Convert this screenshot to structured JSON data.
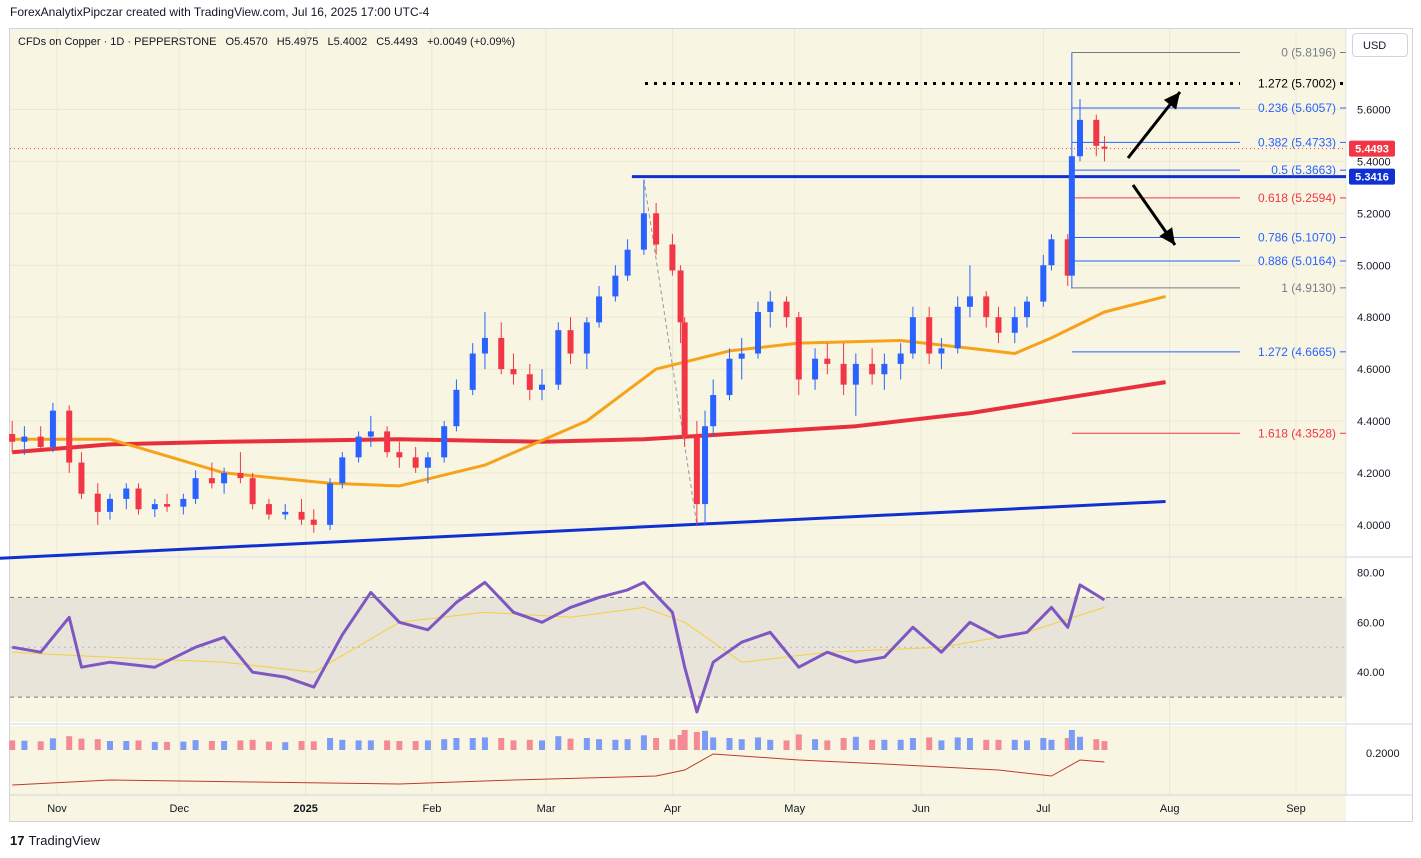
{
  "header": {
    "attribution": "ForexAnalytixPipczar created with TradingView.com, Jul 16, 2025 17:00 UTC-4"
  },
  "symbol_bar": {
    "name": "CFDs on Copper · 1D · PEPPERSTONE",
    "open": "O5.4570",
    "high": "H5.4975",
    "low": "L5.4002",
    "close": "C5.4493",
    "change": "+0.0049 (+0.09%)"
  },
  "currency_button": "USD",
  "footer": {
    "logo_mark": "17",
    "logo_text": "TradingView"
  },
  "colors": {
    "background": "#f8f6e3",
    "up": "#2962ff",
    "down": "#f23645",
    "ma50": "#f7a21b",
    "ma200": "#e8303c",
    "trendline": "#1130d1",
    "rsi": "#7e57c2",
    "rsi_signal": "#f4d03f"
  },
  "chart_data": [
    {
      "type": "candlestick",
      "title": "CFDs on Copper · 1D · PEPPERSTONE",
      "x_ticks": [
        "Nov",
        "Dec",
        "2025",
        "Feb",
        "Mar",
        "Apr",
        "May",
        "Jun",
        "Jul",
        "Aug",
        "Sep"
      ],
      "y_ticks": [
        "4.0000",
        "4.2000",
        "4.4000",
        "4.6000",
        "4.8000",
        "5.0000",
        "5.2000",
        "5.4000",
        "5.6000"
      ],
      "ylim": [
        3.88,
        5.86
      ],
      "last_price": "5.4493",
      "level_label": "5.3416",
      "fibonacci": [
        {
          "label": "0 (5.8196)",
          "value": 5.8196,
          "color": "#787b86"
        },
        {
          "label": "0.236 (5.6057)",
          "value": 5.6057,
          "color": "#2962ff"
        },
        {
          "label": "0.382 (5.4733)",
          "value": 5.4733,
          "color": "#2962ff"
        },
        {
          "label": "0.5 (5.3663)",
          "value": 5.3663,
          "color": "#2962ff"
        },
        {
          "label": "0.618 (5.2594)",
          "value": 5.2594,
          "color": "#f23645"
        },
        {
          "label": "0.786 (5.1070)",
          "value": 5.107,
          "color": "#2962ff"
        },
        {
          "label": "0.886 (5.0164)",
          "value": 5.0164,
          "color": "#2962ff"
        },
        {
          "label": "1 (4.9130)",
          "value": 4.913,
          "color": "#787b86"
        },
        {
          "label": "1.272 (4.6665)",
          "value": 4.6665,
          "color": "#2962ff"
        },
        {
          "label": "1.618 (4.3528)",
          "value": 4.3528,
          "color": "#f23645"
        }
      ],
      "target": {
        "label": "1.272 (5.7002)",
        "value": 5.7002
      },
      "resistance": 5.3416,
      "trendline": {
        "start": [
          "Oct 21",
          3.87
        ],
        "end": [
          "Jul 31",
          4.09
        ]
      },
      "candles": [
        {
          "date": "Oct 21",
          "o": 4.35,
          "h": 4.4,
          "l": 4.28,
          "c": 4.32
        },
        {
          "date": "Oct 24",
          "o": 4.32,
          "h": 4.38,
          "l": 4.27,
          "c": 4.34
        },
        {
          "date": "Oct 28",
          "o": 4.34,
          "h": 4.38,
          "l": 4.29,
          "c": 4.3
        },
        {
          "date": "Oct 31",
          "o": 4.3,
          "h": 4.47,
          "l": 4.28,
          "c": 4.44
        },
        {
          "date": "Nov 04",
          "o": 4.44,
          "h": 4.46,
          "l": 4.2,
          "c": 4.24
        },
        {
          "date": "Nov 07",
          "o": 4.24,
          "h": 4.28,
          "l": 4.1,
          "c": 4.12
        },
        {
          "date": "Nov 11",
          "o": 4.12,
          "h": 4.16,
          "l": 4.0,
          "c": 4.05
        },
        {
          "date": "Nov 14",
          "o": 4.05,
          "h": 4.12,
          "l": 4.02,
          "c": 4.1
        },
        {
          "date": "Nov 18",
          "o": 4.1,
          "h": 4.16,
          "l": 4.06,
          "c": 4.14
        },
        {
          "date": "Nov 21",
          "o": 4.14,
          "h": 4.16,
          "l": 4.04,
          "c": 4.06
        },
        {
          "date": "Nov 25",
          "o": 4.06,
          "h": 4.1,
          "l": 4.03,
          "c": 4.08
        },
        {
          "date": "Nov 28",
          "o": 4.08,
          "h": 4.12,
          "l": 4.05,
          "c": 4.07
        },
        {
          "date": "Dec 02",
          "o": 4.07,
          "h": 4.12,
          "l": 4.04,
          "c": 4.1
        },
        {
          "date": "Dec 05",
          "o": 4.1,
          "h": 4.21,
          "l": 4.08,
          "c": 4.18
        },
        {
          "date": "Dec 09",
          "o": 4.18,
          "h": 4.24,
          "l": 4.14,
          "c": 4.16
        },
        {
          "date": "Dec 12",
          "o": 4.16,
          "h": 4.22,
          "l": 4.12,
          "c": 4.2
        },
        {
          "date": "Dec 16",
          "o": 4.2,
          "h": 4.28,
          "l": 4.16,
          "c": 4.18
        },
        {
          "date": "Dec 19",
          "o": 4.18,
          "h": 4.2,
          "l": 4.06,
          "c": 4.08
        },
        {
          "date": "Dec 23",
          "o": 4.08,
          "h": 4.1,
          "l": 4.02,
          "c": 4.04
        },
        {
          "date": "Dec 27",
          "o": 4.04,
          "h": 4.08,
          "l": 4.02,
          "c": 4.05
        },
        {
          "date": "Dec 31",
          "o": 4.05,
          "h": 4.1,
          "l": 4.0,
          "c": 4.02
        },
        {
          "date": "Jan 03",
          "o": 4.02,
          "h": 4.06,
          "l": 3.97,
          "c": 4.0
        },
        {
          "date": "Jan 07",
          "o": 4.0,
          "h": 4.18,
          "l": 3.98,
          "c": 4.16
        },
        {
          "date": "Jan 10",
          "o": 4.16,
          "h": 4.28,
          "l": 4.14,
          "c": 4.26
        },
        {
          "date": "Jan 14",
          "o": 4.26,
          "h": 4.36,
          "l": 4.24,
          "c": 4.34
        },
        {
          "date": "Jan 17",
          "o": 4.34,
          "h": 4.42,
          "l": 4.3,
          "c": 4.36
        },
        {
          "date": "Jan 21",
          "o": 4.36,
          "h": 4.38,
          "l": 4.26,
          "c": 4.28
        },
        {
          "date": "Jan 24",
          "o": 4.28,
          "h": 4.32,
          "l": 4.22,
          "c": 4.26
        },
        {
          "date": "Jan 28",
          "o": 4.26,
          "h": 4.3,
          "l": 4.2,
          "c": 4.22
        },
        {
          "date": "Jan 31",
          "o": 4.22,
          "h": 4.28,
          "l": 4.16,
          "c": 4.26
        },
        {
          "date": "Feb 04",
          "o": 4.26,
          "h": 4.4,
          "l": 4.24,
          "c": 4.38
        },
        {
          "date": "Feb 07",
          "o": 4.38,
          "h": 4.56,
          "l": 4.36,
          "c": 4.52
        },
        {
          "date": "Feb 11",
          "o": 4.52,
          "h": 4.7,
          "l": 4.5,
          "c": 4.66
        },
        {
          "date": "Feb 14",
          "o": 4.66,
          "h": 4.82,
          "l": 4.6,
          "c": 4.72
        },
        {
          "date": "Feb 18",
          "o": 4.72,
          "h": 4.78,
          "l": 4.58,
          "c": 4.6
        },
        {
          "date": "Feb 21",
          "o": 4.6,
          "h": 4.66,
          "l": 4.54,
          "c": 4.58
        },
        {
          "date": "Feb 25",
          "o": 4.58,
          "h": 4.62,
          "l": 4.48,
          "c": 4.52
        },
        {
          "date": "Feb 28",
          "o": 4.52,
          "h": 4.6,
          "l": 4.48,
          "c": 4.54
        },
        {
          "date": "Mar 04",
          "o": 4.54,
          "h": 4.78,
          "l": 4.52,
          "c": 4.75
        },
        {
          "date": "Mar 07",
          "o": 4.75,
          "h": 4.8,
          "l": 4.62,
          "c": 4.66
        },
        {
          "date": "Mar 11",
          "o": 4.66,
          "h": 4.8,
          "l": 4.6,
          "c": 4.78
        },
        {
          "date": "Mar 14",
          "o": 4.78,
          "h": 4.92,
          "l": 4.76,
          "c": 4.88
        },
        {
          "date": "Mar 18",
          "o": 4.88,
          "h": 5.0,
          "l": 4.86,
          "c": 4.96
        },
        {
          "date": "Mar 21",
          "o": 4.96,
          "h": 5.1,
          "l": 4.94,
          "c": 5.06
        },
        {
          "date": "Mar 25",
          "o": 5.06,
          "h": 5.33,
          "l": 5.04,
          "c": 5.2
        },
        {
          "date": "Mar 28",
          "o": 5.2,
          "h": 5.24,
          "l": 5.04,
          "c": 5.08
        },
        {
          "date": "Apr 01",
          "o": 5.08,
          "h": 5.12,
          "l": 4.96,
          "c": 4.98
        },
        {
          "date": "Apr 03",
          "o": 4.98,
          "h": 5.0,
          "l": 4.7,
          "c": 4.78
        },
        {
          "date": "Apr 04",
          "o": 4.78,
          "h": 4.8,
          "l": 4.3,
          "c": 4.34
        },
        {
          "date": "Apr 07",
          "o": 4.34,
          "h": 4.4,
          "l": 4.0,
          "c": 4.08
        },
        {
          "date": "Apr 09",
          "o": 4.08,
          "h": 4.44,
          "l": 4.0,
          "c": 4.38
        },
        {
          "date": "Apr 11",
          "o": 4.38,
          "h": 4.56,
          "l": 4.34,
          "c": 4.5
        },
        {
          "date": "Apr 15",
          "o": 4.5,
          "h": 4.68,
          "l": 4.48,
          "c": 4.64
        },
        {
          "date": "Apr 18",
          "o": 4.64,
          "h": 4.72,
          "l": 4.56,
          "c": 4.66
        },
        {
          "date": "Apr 22",
          "o": 4.66,
          "h": 4.86,
          "l": 4.64,
          "c": 4.82
        },
        {
          "date": "Apr 25",
          "o": 4.82,
          "h": 4.9,
          "l": 4.76,
          "c": 4.86
        },
        {
          "date": "Apr 29",
          "o": 4.86,
          "h": 4.88,
          "l": 4.76,
          "c": 4.8
        },
        {
          "date": "May 02",
          "o": 4.8,
          "h": 4.82,
          "l": 4.5,
          "c": 4.56
        },
        {
          "date": "May 06",
          "o": 4.56,
          "h": 4.68,
          "l": 4.52,
          "c": 4.64
        },
        {
          "date": "May 09",
          "o": 4.64,
          "h": 4.7,
          "l": 4.58,
          "c": 4.62
        },
        {
          "date": "May 13",
          "o": 4.62,
          "h": 4.7,
          "l": 4.5,
          "c": 4.54
        },
        {
          "date": "May 16",
          "o": 4.54,
          "h": 4.66,
          "l": 4.42,
          "c": 4.62
        },
        {
          "date": "May 20",
          "o": 4.62,
          "h": 4.68,
          "l": 4.54,
          "c": 4.58
        },
        {
          "date": "May 23",
          "o": 4.58,
          "h": 4.66,
          "l": 4.52,
          "c": 4.62
        },
        {
          "date": "May 27",
          "o": 4.62,
          "h": 4.7,
          "l": 4.56,
          "c": 4.66
        },
        {
          "date": "May 30",
          "o": 4.66,
          "h": 4.84,
          "l": 4.64,
          "c": 4.8
        },
        {
          "date": "Jun 03",
          "o": 4.8,
          "h": 4.84,
          "l": 4.62,
          "c": 4.66
        },
        {
          "date": "Jun 06",
          "o": 4.66,
          "h": 4.72,
          "l": 4.6,
          "c": 4.68
        },
        {
          "date": "Jun 10",
          "o": 4.68,
          "h": 4.88,
          "l": 4.66,
          "c": 4.84
        },
        {
          "date": "Jun 13",
          "o": 4.84,
          "h": 5.0,
          "l": 4.8,
          "c": 4.88
        },
        {
          "date": "Jun 17",
          "o": 4.88,
          "h": 4.9,
          "l": 4.76,
          "c": 4.8
        },
        {
          "date": "Jun 20",
          "o": 4.8,
          "h": 4.84,
          "l": 4.7,
          "c": 4.74
        },
        {
          "date": "Jun 24",
          "o": 4.74,
          "h": 4.84,
          "l": 4.7,
          "c": 4.8
        },
        {
          "date": "Jun 27",
          "o": 4.8,
          "h": 4.88,
          "l": 4.76,
          "c": 4.86
        },
        {
          "date": "Jul 01",
          "o": 4.86,
          "h": 5.04,
          "l": 4.84,
          "c": 5.0
        },
        {
          "date": "Jul 03",
          "o": 5.0,
          "h": 5.12,
          "l": 4.98,
          "c": 5.1
        },
        {
          "date": "Jul 07",
          "o": 5.1,
          "h": 5.12,
          "l": 4.92,
          "c": 4.96
        },
        {
          "date": "Jul 08",
          "o": 4.96,
          "h": 5.82,
          "l": 4.91,
          "c": 5.42
        },
        {
          "date": "Jul 10",
          "o": 5.42,
          "h": 5.64,
          "l": 5.4,
          "c": 5.56
        },
        {
          "date": "Jul 14",
          "o": 5.56,
          "h": 5.58,
          "l": 5.42,
          "c": 5.46
        },
        {
          "date": "Jul 16",
          "o": 5.457,
          "h": 5.4975,
          "l": 5.4002,
          "c": 5.4493
        }
      ],
      "ma50": [
        [
          "Oct 21",
          4.33
        ],
        [
          "Nov 14",
          4.33
        ],
        [
          "Dec 12",
          4.2
        ],
        [
          "Jan 07",
          4.16
        ],
        [
          "Jan 24",
          4.15
        ],
        [
          "Feb 14",
          4.23
        ],
        [
          "Mar 11",
          4.4
        ],
        [
          "Mar 28",
          4.6
        ],
        [
          "Apr 15",
          4.67
        ],
        [
          "May 02",
          4.7
        ],
        [
          "May 27",
          4.71
        ],
        [
          "Jun 13",
          4.68
        ],
        [
          "Jun 24",
          4.66
        ],
        [
          "Jul 03",
          4.72
        ],
        [
          "Jul 16",
          4.82
        ],
        [
          "Jul 31",
          4.88
        ]
      ],
      "ma200": [
        [
          "Oct 21",
          4.28
        ],
        [
          "Nov 14",
          4.31
        ],
        [
          "Dec 12",
          4.32
        ],
        [
          "Jan 24",
          4.33
        ],
        [
          "Feb 28",
          4.32
        ],
        [
          "Mar 25",
          4.33
        ],
        [
          "Apr 15",
          4.35
        ],
        [
          "May 16",
          4.38
        ],
        [
          "Jun 13",
          4.43
        ],
        [
          "Jul 03",
          4.48
        ],
        [
          "Jul 31",
          4.55
        ]
      ]
    },
    {
      "type": "line",
      "title": "RSI",
      "y_ticks": [
        "40.00",
        "60.00",
        "80.00"
      ],
      "ylim": [
        20,
        85
      ],
      "bands": [
        30,
        70
      ],
      "series": [
        {
          "values": [
            [
              "Oct 21",
              50
            ],
            [
              "Oct 28",
              48
            ],
            [
              "Nov 04",
              62
            ],
            [
              "Nov 07",
              42
            ],
            [
              "Nov 14",
              44
            ],
            [
              "Nov 25",
              42
            ],
            [
              "Dec 05",
              50
            ],
            [
              "Dec 12",
              54
            ],
            [
              "Dec 19",
              40
            ],
            [
              "Dec 27",
              38
            ],
            [
              "Jan 03",
              34
            ],
            [
              "Jan 10",
              55
            ],
            [
              "Jan 17",
              72
            ],
            [
              "Jan 24",
              60
            ],
            [
              "Jan 31",
              57
            ],
            [
              "Feb 07",
              68
            ],
            [
              "Feb 14",
              76
            ],
            [
              "Feb 21",
              64
            ],
            [
              "Feb 28",
              60
            ],
            [
              "Mar 07",
              66
            ],
            [
              "Mar 14",
              70
            ],
            [
              "Mar 21",
              73
            ],
            [
              "Mar 25",
              76
            ],
            [
              "Apr 01",
              64
            ],
            [
              "Apr 04",
              42
            ],
            [
              "Apr 07",
              24
            ],
            [
              "Apr 11",
              44
            ],
            [
              "Apr 18",
              52
            ],
            [
              "Apr 25",
              56
            ],
            [
              "May 02",
              42
            ],
            [
              "May 09",
              48
            ],
            [
              "May 16",
              44
            ],
            [
              "May 23",
              46
            ],
            [
              "May 30",
              58
            ],
            [
              "Jun 06",
              48
            ],
            [
              "Jun 13",
              60
            ],
            [
              "Jun 20",
              54
            ],
            [
              "Jun 27",
              56
            ],
            [
              "Jul 03",
              66
            ],
            [
              "Jul 07",
              58
            ],
            [
              "Jul 10",
              75
            ],
            [
              "Jul 16",
              69
            ]
          ]
        },
        {
          "values": [
            [
              "Oct 21",
              48
            ],
            [
              "Nov 14",
              46
            ],
            [
              "Dec 12",
              44
            ],
            [
              "Jan 03",
              40
            ],
            [
              "Jan 24",
              60
            ],
            [
              "Feb 14",
              64
            ],
            [
              "Mar 07",
              62
            ],
            [
              "Mar 25",
              66
            ],
            [
              "Apr 04",
              60
            ],
            [
              "Apr 18",
              44
            ],
            [
              "May 09",
              48
            ],
            [
              "Jun 06",
              50
            ],
            [
              "Jun 27",
              56
            ],
            [
              "Jul 16",
              66
            ]
          ]
        }
      ]
    },
    {
      "type": "bar",
      "title": "Volume",
      "y_ticks": [
        "0.2000"
      ]
    }
  ]
}
